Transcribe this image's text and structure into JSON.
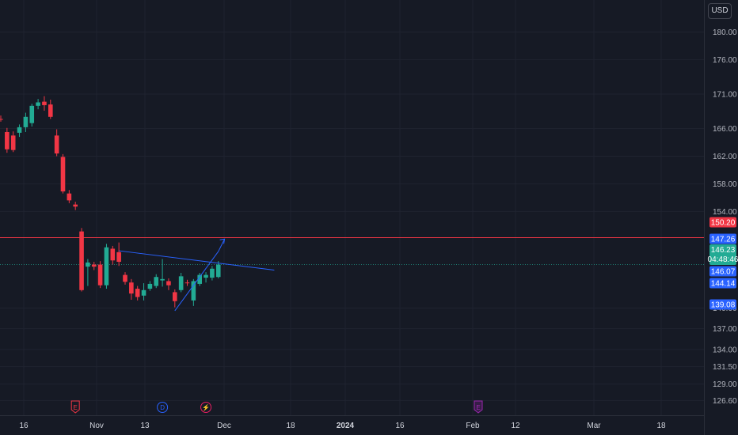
{
  "currency_button": "USD",
  "colors": {
    "background": "#161a25",
    "grid": "#1f2330",
    "up": "#22ab94",
    "down": "#f23645",
    "trendline": "#2962ff",
    "horizontal_line": "#f23645",
    "price_badge_blue": "#2962ff",
    "price_badge_green": "#22ab94",
    "earnings_event": "#f23645",
    "dividend_event": "#2962ff",
    "split_event": "#e91e63",
    "future_earnings_event": "#9c27b0"
  },
  "chart_data": {
    "type": "candlestick",
    "y_axis": {
      "ticks": [
        "180.00",
        "176.00",
        "171.00",
        "166.00",
        "162.00",
        "158.00",
        "154.00",
        "140.00",
        "137.00",
        "134.00",
        "131.50",
        "129.00",
        "126.60"
      ],
      "range": [
        125.5,
        181.2
      ]
    },
    "x_axis": {
      "labels": [
        {
          "text": "16",
          "bold": false
        },
        {
          "text": "Nov",
          "bold": false
        },
        {
          "text": "13",
          "bold": false
        },
        {
          "text": "Dec",
          "bold": false
        },
        {
          "text": "18",
          "bold": false
        },
        {
          "text": "2024",
          "bold": true
        },
        {
          "text": "16",
          "bold": false
        },
        {
          "text": "Feb",
          "bold": false
        },
        {
          "text": "12",
          "bold": false
        },
        {
          "text": "Mar",
          "bold": false
        },
        {
          "text": "18",
          "bold": false
        }
      ]
    },
    "price_badges": [
      {
        "value": "150.20",
        "color": "red"
      },
      {
        "value": "147.26",
        "color": "blue"
      },
      {
        "value": "146.23",
        "countdown": "04:48:46",
        "color": "green"
      },
      {
        "value": "146.07",
        "color": "blue"
      },
      {
        "value": "144.14",
        "color": "blue"
      },
      {
        "value": "139.08",
        "color": "blue"
      }
    ],
    "horizontal_line": {
      "price": 150.2
    },
    "trendlines": [
      {
        "from": [
          19,
          148.3
        ],
        "to": [
          44,
          145.5
        ]
      },
      {
        "from": [
          28,
          139.6
        ],
        "to": [
          35,
          148.2
        ]
      },
      {
        "from": [
          35,
          148.2
        ],
        "to": [
          36,
          150.0
        ]
      }
    ],
    "candles": [
      {
        "o": 167.4,
        "h": 167.9,
        "l": 167.0,
        "c": 167.3
      },
      {
        "o": 165.5,
        "h": 166.1,
        "l": 162.5,
        "c": 163.0
      },
      {
        "o": 165.0,
        "h": 165.6,
        "l": 162.6,
        "c": 162.9
      },
      {
        "o": 165.4,
        "h": 166.6,
        "l": 164.8,
        "c": 166.2
      },
      {
        "o": 166.2,
        "h": 168.3,
        "l": 165.5,
        "c": 167.7
      },
      {
        "o": 166.8,
        "h": 169.6,
        "l": 166.3,
        "c": 169.3
      },
      {
        "o": 169.3,
        "h": 170.3,
        "l": 168.8,
        "c": 169.8
      },
      {
        "o": 169.9,
        "h": 170.7,
        "l": 168.6,
        "c": 169.4
      },
      {
        "o": 169.5,
        "h": 170.2,
        "l": 167.4,
        "c": 167.7
      },
      {
        "o": 165.0,
        "h": 165.9,
        "l": 162.0,
        "c": 162.4
      },
      {
        "o": 161.9,
        "h": 162.3,
        "l": 156.6,
        "c": 156.9
      },
      {
        "o": 156.6,
        "h": 157.1,
        "l": 155.2,
        "c": 155.6
      },
      {
        "o": 155.0,
        "h": 155.4,
        "l": 154.2,
        "c": 154.7
      },
      {
        "o": 151.1,
        "h": 151.6,
        "l": 142.4,
        "c": 142.6
      },
      {
        "o": 146.0,
        "h": 147.1,
        "l": 143.2,
        "c": 146.6
      },
      {
        "o": 146.3,
        "h": 146.7,
        "l": 145.5,
        "c": 146.0
      },
      {
        "o": 146.3,
        "h": 146.8,
        "l": 142.9,
        "c": 143.3
      },
      {
        "o": 143.3,
        "h": 149.3,
        "l": 142.8,
        "c": 148.8
      },
      {
        "o": 148.6,
        "h": 149.0,
        "l": 146.3,
        "c": 146.9
      },
      {
        "o": 148.1,
        "h": 149.5,
        "l": 146.1,
        "c": 146.7
      },
      {
        "o": 144.8,
        "h": 145.2,
        "l": 143.4,
        "c": 143.8
      },
      {
        "o": 143.7,
        "h": 144.2,
        "l": 141.2,
        "c": 142.1
      },
      {
        "o": 142.8,
        "h": 143.2,
        "l": 141.1,
        "c": 141.6
      },
      {
        "o": 141.8,
        "h": 143.6,
        "l": 141.1,
        "c": 142.6
      },
      {
        "o": 142.8,
        "h": 143.9,
        "l": 142.5,
        "c": 143.5
      },
      {
        "o": 143.2,
        "h": 144.9,
        "l": 142.9,
        "c": 144.5
      },
      {
        "o": 144.0,
        "h": 147.1,
        "l": 143.1,
        "c": 144.2
      },
      {
        "o": 143.9,
        "h": 144.3,
        "l": 142.6,
        "c": 143.3
      },
      {
        "o": 142.3,
        "h": 142.7,
        "l": 140.1,
        "c": 141.0
      },
      {
        "o": 142.6,
        "h": 145.1,
        "l": 142.3,
        "c": 144.6
      },
      {
        "o": 143.7,
        "h": 144.1,
        "l": 143.2,
        "c": 143.6
      },
      {
        "o": 141.1,
        "h": 144.2,
        "l": 140.3,
        "c": 143.9
      },
      {
        "o": 143.5,
        "h": 145.1,
        "l": 143.2,
        "c": 144.8
      },
      {
        "o": 144.4,
        "h": 145.2,
        "l": 143.7,
        "c": 144.8
      },
      {
        "o": 144.4,
        "h": 146.1,
        "l": 144.0,
        "c": 145.7
      },
      {
        "o": 144.5,
        "h": 146.8,
        "l": 144.3,
        "c": 146.3
      }
    ],
    "events": [
      {
        "type": "earnings",
        "label": "E",
        "candle_index": 12
      },
      {
        "type": "dividend",
        "label": "D",
        "candle_index": 26
      },
      {
        "type": "split",
        "label": "⚡",
        "candle_index": 33
      },
      {
        "type": "earnings",
        "label": "E",
        "future": true
      }
    ]
  }
}
